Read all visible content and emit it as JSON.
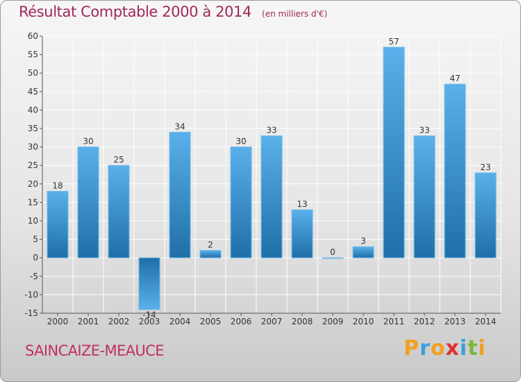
{
  "header": {
    "title": "Résultat Comptable 2000 à 2014",
    "subtitle": "(en milliers d'€)"
  },
  "footer": {
    "commune": "SAINCAIZE-MEAUCE",
    "logo_text": "Proxiti",
    "logo_letters": [
      {
        "ch": "P",
        "color": "#f0a020"
      },
      {
        "ch": "r",
        "color": "#3aa0d8"
      },
      {
        "ch": "o",
        "color": "#f0a020"
      },
      {
        "ch": "x",
        "color": "#e03030"
      },
      {
        "ch": "i",
        "color": "#3aa0d8"
      },
      {
        "ch": "t",
        "color": "#7ab83a"
      },
      {
        "ch": "i",
        "color": "#f0a020"
      }
    ]
  },
  "colors": {
    "bar_light": "#5ab0ea",
    "bar_dark": "#1f6fa8",
    "grid": "#ffffff",
    "title": "#a0285a"
  },
  "chart_data": {
    "type": "bar",
    "categories": [
      "2000",
      "2001",
      "2002",
      "2003",
      "2004",
      "2005",
      "2006",
      "2007",
      "2008",
      "2009",
      "2010",
      "2011",
      "2012",
      "2013",
      "2014"
    ],
    "values": [
      18,
      30,
      25,
      -14,
      34,
      2,
      30,
      33,
      13,
      0,
      3,
      57,
      33,
      47,
      23
    ],
    "value_labels": [
      "18",
      "30",
      "25",
      "-14",
      "34",
      "2",
      "30",
      "33",
      "13",
      "0",
      "3",
      "57",
      "33",
      "47",
      "23"
    ],
    "title": "Résultat Comptable 2000 à 2014",
    "subtitle": "(en milliers d'€)",
    "xlabel": "",
    "ylabel": "",
    "ylim": [
      -15,
      60
    ],
    "yticks": [
      -15,
      -10,
      -5,
      0,
      5,
      10,
      15,
      20,
      25,
      30,
      35,
      40,
      45,
      50,
      55,
      60
    ],
    "grid": true
  }
}
